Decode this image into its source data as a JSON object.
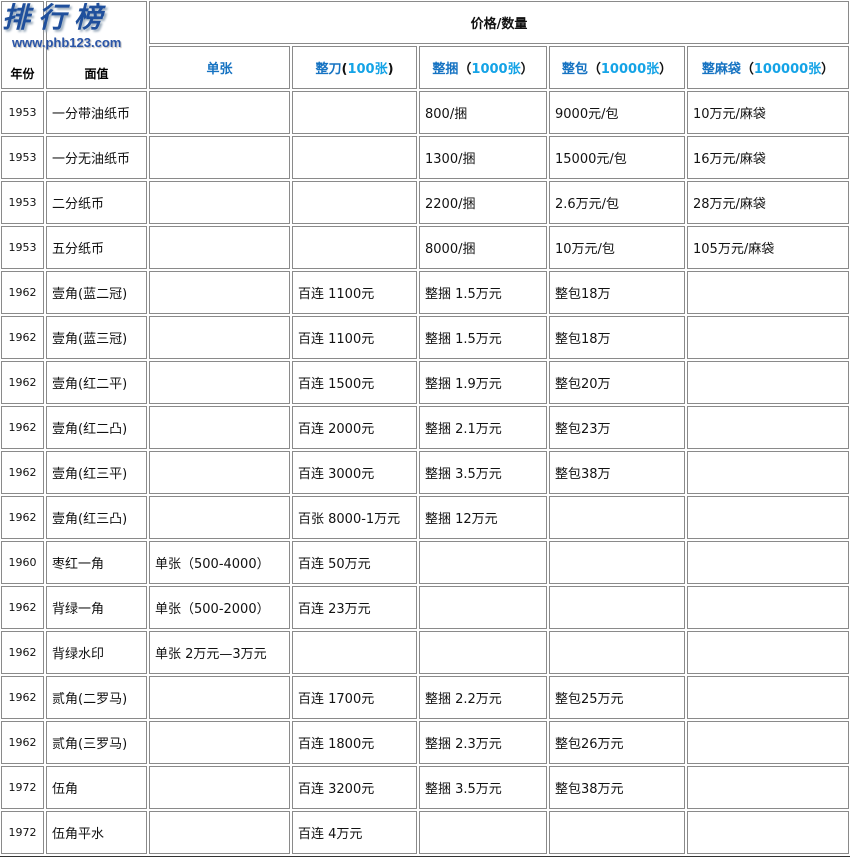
{
  "logo": {
    "text": "排行榜",
    "url": "www.phb123.com"
  },
  "header": {
    "year_label": "年份",
    "denom_label": "面值",
    "group_label": "价格/数量",
    "columns": [
      {
        "main": "单张",
        "paren_open": "",
        "qty": "",
        "paren_close": ""
      },
      {
        "main": "整刀",
        "paren_open": "(",
        "qty": "100张",
        "paren_close": ")"
      },
      {
        "main": "整捆",
        "paren_open": "（",
        "qty": "1000张",
        "paren_close": "）"
      },
      {
        "main": "整包",
        "paren_open": "（",
        "qty": "10000张",
        "paren_close": "）"
      },
      {
        "main": "整麻袋",
        "paren_open": "（",
        "qty": "100000张",
        "paren_close": "）"
      }
    ]
  },
  "rows": [
    [
      "1953",
      "一分带油纸币",
      "",
      "",
      "800/捆",
      "9000元/包",
      "10万元/麻袋"
    ],
    [
      "1953",
      "一分无油纸币",
      "",
      "",
      "1300/捆",
      "15000元/包",
      "16万元/麻袋"
    ],
    [
      "1953",
      "二分纸币",
      "",
      "",
      "2200/捆",
      "2.6万元/包",
      "28万元/麻袋"
    ],
    [
      "1953",
      "五分纸币",
      "",
      "",
      "8000/捆",
      "10万元/包",
      "105万元/麻袋"
    ],
    [
      "1962",
      "壹角(蓝二冠)",
      "",
      "百连 1100元",
      "整捆 1.5万元",
      "整包18万",
      ""
    ],
    [
      "1962",
      "壹角(蓝三冠)",
      "",
      "百连 1100元",
      "整捆 1.5万元",
      "整包18万",
      ""
    ],
    [
      "1962",
      "壹角(红二平)",
      "",
      "百连 1500元",
      "整捆 1.9万元",
      "整包20万",
      ""
    ],
    [
      "1962",
      "壹角(红二凸)",
      "",
      "百连 2000元",
      "整捆 2.1万元",
      "整包23万",
      ""
    ],
    [
      "1962",
      "壹角(红三平)",
      "",
      "百连 3000元",
      "整捆 3.5万元",
      "整包38万",
      ""
    ],
    [
      "1962",
      "壹角(红三凸)",
      "",
      "百张 8000-1万元",
      "整捆 12万元",
      "",
      ""
    ],
    [
      "1960",
      "枣红一角",
      "单张（500-4000）",
      "百连 50万元",
      "",
      "",
      ""
    ],
    [
      "1962",
      "背绿一角",
      "单张（500-2000）",
      "百连 23万元",
      "",
      "",
      ""
    ],
    [
      "1962",
      "背绿水印",
      "单张 2万元—3万元",
      "",
      "",
      "",
      ""
    ],
    [
      "1962",
      "贰角(二罗马)",
      "",
      "百连 1700元",
      "整捆 2.2万元",
      "整包25万元",
      ""
    ],
    [
      "1962",
      "贰角(三罗马)",
      "",
      "百连 1800元",
      "整捆 2.3万元",
      "整包26万元",
      ""
    ],
    [
      "1972",
      "伍角",
      "",
      "百连 3200元",
      "整捆 3.5万元",
      "整包38万元",
      ""
    ],
    [
      "1972",
      "伍角平水",
      "",
      "百连 4万元",
      "",
      "",
      ""
    ]
  ],
  "colors": {
    "header_blue": "#1673c2",
    "qty_cyan": "#14a3e6",
    "border": "#8a8a8a"
  }
}
